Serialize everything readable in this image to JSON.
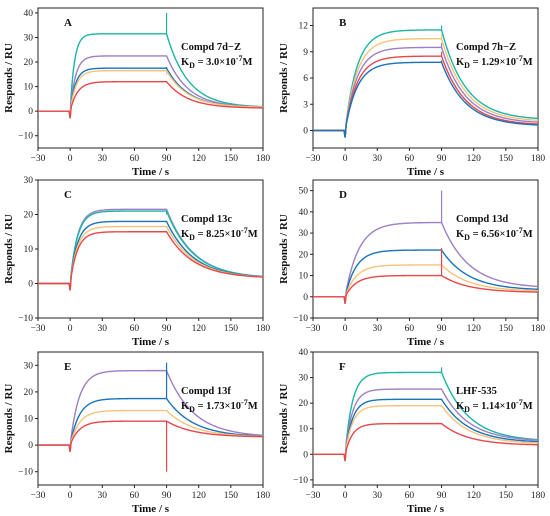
{
  "figure": {
    "xlabel": "Time / s",
    "ylabel": "Responds / RU"
  },
  "series_colors": {
    "teal": "#1bb5a3",
    "purple": "#9d7fc5",
    "blue": "#1874b8",
    "orange": "#f5c37a",
    "red": "#e8474a"
  },
  "chart_data": [
    {
      "type": "line",
      "panel": "A",
      "compound": "Compd 7d−Z",
      "kd_prefix": "K",
      "kd_sub": "D",
      "kd_mid": " = 3.0×10",
      "kd_exp": "-7",
      "kd_unit": "M",
      "xlabel": "Time / s",
      "ylabel": "Responds / RU",
      "xlim": [
        -30,
        180
      ],
      "ylim": [
        -15,
        42
      ],
      "xticks": [
        -30,
        0,
        30,
        60,
        90,
        120,
        150,
        180
      ],
      "yticks": [
        -10,
        0,
        10,
        20,
        30,
        40
      ],
      "series": [
        {
          "color": "teal",
          "plateau": 31.5,
          "end": 1.5,
          "k_on": 0.25,
          "k_off": 0.05,
          "spike": 40
        },
        {
          "color": "purple",
          "plateau": 22.5,
          "end": 1.5,
          "k_on": 0.2,
          "k_off": 0.05,
          "spike": 22
        },
        {
          "color": "blue",
          "plateau": 17.5,
          "end": 1.5,
          "k_on": 0.2,
          "k_off": 0.05,
          "spike": 18
        },
        {
          "color": "orange",
          "plateau": 16.5,
          "end": 1.5,
          "k_on": 0.18,
          "k_off": 0.05,
          "spike": 15
        },
        {
          "color": "red",
          "plateau": 12,
          "end": 1.2,
          "k_on": 0.15,
          "k_off": 0.05,
          "spike": 0
        }
      ]
    },
    {
      "type": "line",
      "panel": "B",
      "compound": "Compd 7h−Z",
      "kd_prefix": "K",
      "kd_sub": "D",
      "kd_mid": " = 1.29×10",
      "kd_exp": "-7",
      "kd_unit": "M",
      "xlabel": "Time / s",
      "ylabel": "Responds / RU",
      "xlim": [
        -30,
        180
      ],
      "ylim": [
        -2,
        14
      ],
      "xticks": [
        -30,
        0,
        30,
        60,
        90,
        120,
        150,
        180
      ],
      "yticks": [
        0,
        3,
        6,
        9,
        12
      ],
      "series": [
        {
          "color": "teal",
          "plateau": 11.5,
          "end": 1.2,
          "k_on": 0.09,
          "k_off": 0.045,
          "spike": 12
        },
        {
          "color": "orange",
          "plateau": 10.5,
          "end": 1.0,
          "k_on": 0.09,
          "k_off": 0.045,
          "spike": 11
        },
        {
          "color": "purple",
          "plateau": 9.5,
          "end": 0.8,
          "k_on": 0.09,
          "k_off": 0.045,
          "spike": 10
        },
        {
          "color": "red",
          "plateau": 8.5,
          "end": 0.6,
          "k_on": 0.09,
          "k_off": 0.045,
          "spike": 9
        },
        {
          "color": "blue",
          "plateau": 7.8,
          "end": 0.5,
          "k_on": 0.09,
          "k_off": 0.045,
          "spike": 8
        }
      ]
    },
    {
      "type": "line",
      "panel": "C",
      "compound": "Compd 13c",
      "kd_prefix": "K",
      "kd_sub": "D",
      "kd_mid": " = 8.25×10",
      "kd_exp": "-7",
      "kd_unit": "M",
      "xlabel": "Time / s",
      "ylabel": "Responds / RU",
      "xlim": [
        -30,
        180
      ],
      "ylim": [
        -10,
        30
      ],
      "xticks": [
        -30,
        0,
        30,
        60,
        90,
        120,
        150,
        180
      ],
      "yticks": [
        -10,
        0,
        10,
        20,
        30
      ],
      "series": [
        {
          "color": "purple",
          "plateau": 21.5,
          "end": 1.5,
          "k_on": 0.15,
          "k_off": 0.04,
          "spike": 0
        },
        {
          "color": "teal",
          "plateau": 21,
          "end": 1.5,
          "k_on": 0.15,
          "k_off": 0.04,
          "spike": 20
        },
        {
          "color": "blue",
          "plateau": 18,
          "end": 1.5,
          "k_on": 0.15,
          "k_off": 0.04,
          "spike": 0
        },
        {
          "color": "orange",
          "plateau": 16.5,
          "end": 1.5,
          "k_on": 0.15,
          "k_off": 0.04,
          "spike": 0
        },
        {
          "color": "red",
          "plateau": 15,
          "end": 1.5,
          "k_on": 0.15,
          "k_off": 0.04,
          "spike": 0
        }
      ]
    },
    {
      "type": "line",
      "panel": "D",
      "compound": "Compd 13d",
      "kd_prefix": "K",
      "kd_sub": "D",
      "kd_mid": " = 6.56×10",
      "kd_exp": "-7",
      "kd_unit": "M",
      "xlabel": "Time / s",
      "ylabel": "Responds / RU",
      "xlim": [
        -30,
        180
      ],
      "ylim": [
        -10,
        55
      ],
      "xticks": [
        -30,
        0,
        30,
        60,
        90,
        120,
        150,
        180
      ],
      "yticks": [
        -10,
        0,
        10,
        20,
        30,
        40,
        50
      ],
      "series": [
        {
          "color": "purple",
          "plateau": 35,
          "end": 4,
          "k_on": 0.08,
          "k_off": 0.04,
          "spike": 50
        },
        {
          "color": "blue",
          "plateau": 22,
          "end": 3,
          "k_on": 0.1,
          "k_off": 0.04,
          "spike": 0
        },
        {
          "color": "orange",
          "plateau": 15,
          "end": 2.5,
          "k_on": 0.1,
          "k_off": 0.04,
          "spike": 0
        },
        {
          "color": "red",
          "plateau": 10,
          "end": 2,
          "k_on": 0.1,
          "k_off": 0.04,
          "spike": 23
        }
      ]
    },
    {
      "type": "line",
      "panel": "E",
      "compound": "Compd 13f",
      "kd_prefix": "K",
      "kd_sub": "D",
      "kd_mid": " = 1.73×10",
      "kd_exp": "-7",
      "kd_unit": "M",
      "xlabel": "Time / s",
      "ylabel": "Responds / RU",
      "xlim": [
        -30,
        180
      ],
      "ylim": [
        -15,
        35
      ],
      "xticks": [
        -30,
        0,
        30,
        60,
        90,
        120,
        150,
        180
      ],
      "yticks": [
        -10,
        0,
        10,
        20,
        30
      ],
      "series": [
        {
          "color": "purple",
          "plateau": 28,
          "end": 3,
          "k_on": 0.12,
          "k_off": 0.04,
          "spike": 0
        },
        {
          "color": "blue",
          "plateau": 17.5,
          "end": 3,
          "k_on": 0.12,
          "k_off": 0.04,
          "spike": 31
        },
        {
          "color": "orange",
          "plateau": 13,
          "end": 3,
          "k_on": 0.12,
          "k_off": 0.04,
          "spike": 0
        },
        {
          "color": "red",
          "plateau": 9,
          "end": 3,
          "k_on": 0.12,
          "k_off": 0.04,
          "spike": -10
        }
      ]
    },
    {
      "type": "line",
      "panel": "F",
      "compound": "LHF-535",
      "kd_prefix": "K",
      "kd_sub": "D",
      "kd_mid": " = 1.14×10",
      "kd_exp": "-7",
      "kd_unit": "M",
      "xlabel": "Time / s",
      "ylabel": "Responds / RU",
      "xlim": [
        -30,
        180
      ],
      "ylim": [
        -12,
        40
      ],
      "xticks": [
        -30,
        0,
        30,
        60,
        90,
        120,
        150,
        180
      ],
      "yticks": [
        -10,
        0,
        10,
        20,
        30,
        40
      ],
      "series": [
        {
          "color": "teal",
          "plateau": 32,
          "end": 5,
          "k_on": 0.15,
          "k_off": 0.04,
          "spike": 34
        },
        {
          "color": "purple",
          "plateau": 25.5,
          "end": 5,
          "k_on": 0.15,
          "k_off": 0.04,
          "spike": 0
        },
        {
          "color": "blue",
          "plateau": 21.5,
          "end": 4.5,
          "k_on": 0.15,
          "k_off": 0.04,
          "spike": 0
        },
        {
          "color": "orange",
          "plateau": 19,
          "end": 4,
          "k_on": 0.15,
          "k_off": 0.04,
          "spike": 0
        },
        {
          "color": "red",
          "plateau": 12,
          "end": 3.5,
          "k_on": 0.15,
          "k_off": 0.04,
          "spike": 0
        }
      ]
    }
  ]
}
